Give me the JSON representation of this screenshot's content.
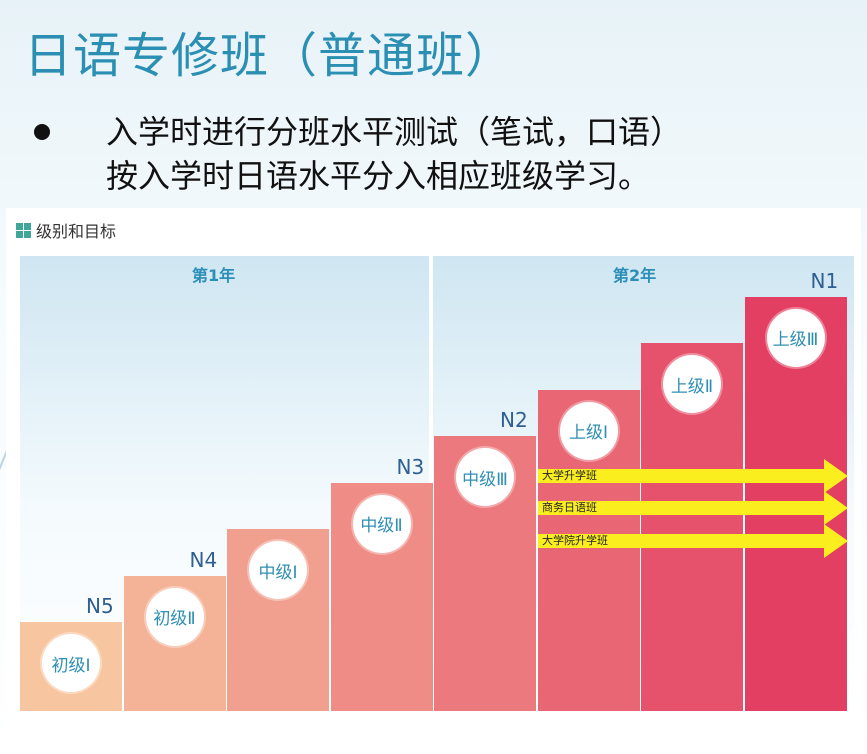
{
  "slide": {
    "title": "日语专修班（普通班）",
    "line1": "入学时进行分班水平测试（笔试，口语）",
    "line2": "按入学时日语水平分入相应班级学习。"
  },
  "panel": {
    "title": "级别和目标",
    "year1": "第1年",
    "year2": "第2年"
  },
  "colors": {
    "accent": "#2a8fb3",
    "arrow": "#fbee1f",
    "step_start": "#f7c6a0",
    "step_end": "#e33f62"
  },
  "levels": [
    {
      "class": "初级Ⅰ",
      "jlpt": "N5",
      "step": 1
    },
    {
      "class": "初级Ⅱ",
      "jlpt": "N4",
      "step": 2
    },
    {
      "class": "中级Ⅰ",
      "jlpt": "",
      "step": 3
    },
    {
      "class": "中级Ⅱ",
      "jlpt": "N3",
      "step": 4
    },
    {
      "class": "中级Ⅲ",
      "jlpt": "N2",
      "step": 5
    },
    {
      "class": "上级Ⅰ",
      "jlpt": "",
      "step": 6
    },
    {
      "class": "上级Ⅱ",
      "jlpt": "",
      "step": 7
    },
    {
      "class": "上级Ⅲ",
      "jlpt": "N1",
      "step": 8
    }
  ],
  "tracks": [
    {
      "label": "大学升学班"
    },
    {
      "label": "商务日语班"
    },
    {
      "label": "大学院升学班"
    }
  ]
}
